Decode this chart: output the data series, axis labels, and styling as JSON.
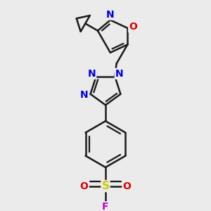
{
  "bg_color": "#ebebeb",
  "bond_color": "#1a1a1a",
  "bond_width": 1.8,
  "atom_colors": {
    "N": "#0000e0",
    "O": "#dd0000",
    "S": "#cccc00",
    "F": "#cc00cc",
    "C": "#1a1a1a"
  },
  "font_size": 10
}
